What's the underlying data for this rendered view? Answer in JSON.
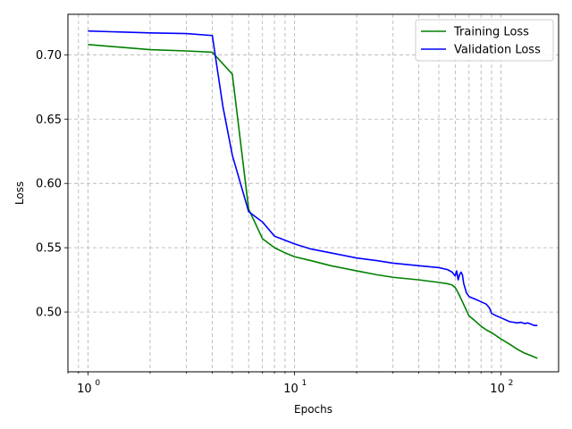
{
  "chart_data": {
    "type": "line",
    "title": "",
    "xlabel": "Epochs",
    "ylabel": "Loss",
    "xscale": "log",
    "xlim": [
      0.8,
      190
    ],
    "ylim": [
      0.4535,
      0.7315
    ],
    "x_ticks": [
      1,
      10,
      100
    ],
    "x_tick_labels": [
      "10",
      "10",
      "10"
    ],
    "x_tick_exponents": [
      "0",
      "1",
      "2"
    ],
    "y_ticks": [
      0.5,
      0.55,
      0.6,
      0.65,
      0.7
    ],
    "y_tick_labels": [
      "0.50",
      "0.55",
      "0.60",
      "0.65",
      "0.70"
    ],
    "grid": true,
    "legend_position": "top-right",
    "series": [
      {
        "name": "Training Loss",
        "color": "#008000",
        "x": [
          1,
          2,
          3,
          4,
          5,
          6,
          7,
          8,
          9,
          10,
          12,
          15,
          20,
          25,
          30,
          40,
          50,
          55,
          58,
          60,
          62,
          65,
          70,
          75,
          80,
          85,
          90,
          100,
          110,
          120,
          130,
          140,
          150
        ],
        "y": [
          0.708,
          0.704,
          0.703,
          0.702,
          0.685,
          0.58,
          0.557,
          0.55,
          0.546,
          0.543,
          0.54,
          0.536,
          0.532,
          0.529,
          0.527,
          0.525,
          0.523,
          0.522,
          0.521,
          0.519,
          0.515,
          0.508,
          0.497,
          0.493,
          0.489,
          0.486,
          0.484,
          0.479,
          0.475,
          0.471,
          0.468,
          0.466,
          0.464
        ]
      },
      {
        "name": "Validation Loss",
        "color": "#0000ff",
        "x": [
          1,
          2,
          3,
          4,
          4.5,
          5,
          6,
          7,
          8,
          10,
          12,
          15,
          20,
          25,
          30,
          40,
          50,
          55,
          58,
          60,
          61,
          62,
          63,
          64,
          65,
          66,
          68,
          70,
          75,
          80,
          85,
          88,
          90,
          95,
          100,
          110,
          120,
          125,
          130,
          135,
          140,
          145,
          150
        ],
        "y": [
          0.7185,
          0.717,
          0.7165,
          0.715,
          0.66,
          0.622,
          0.578,
          0.57,
          0.559,
          0.553,
          0.549,
          0.546,
          0.542,
          0.54,
          0.538,
          0.536,
          0.5345,
          0.533,
          0.531,
          0.528,
          0.532,
          0.525,
          0.529,
          0.531,
          0.529,
          0.522,
          0.515,
          0.512,
          0.51,
          0.508,
          0.506,
          0.503,
          0.499,
          0.497,
          0.4955,
          0.4925,
          0.4915,
          0.492,
          0.491,
          0.4915,
          0.4905,
          0.4895,
          0.4895
        ]
      }
    ]
  }
}
